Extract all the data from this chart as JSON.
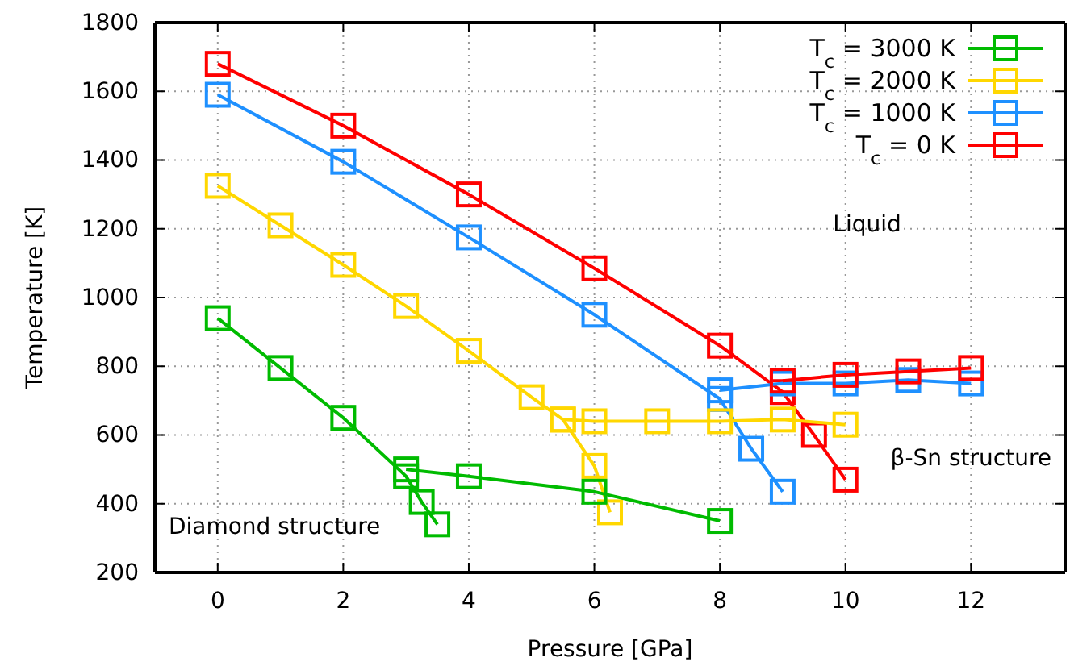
{
  "chart_data": {
    "type": "line",
    "xlabel": "Pressure [GPa]",
    "ylabel": "Temperature [K]",
    "xlim": [
      -1,
      13.5
    ],
    "xticks": [
      0,
      2,
      4,
      6,
      8,
      10,
      12
    ],
    "ylim": [
      200,
      1800
    ],
    "yticks": [
      200,
      400,
      600,
      800,
      1000,
      1200,
      1400,
      1600,
      1800
    ],
    "grid": true,
    "legend": "top right",
    "marker": "square",
    "line_style": "solid",
    "annotations": [
      "Liquid",
      "β-Sn structure",
      "Diamond structure"
    ],
    "series": [
      {
        "name": "T$_{c}$ = 3000 K",
        "color": "#00bb00",
        "x": [
          0,
          1,
          2,
          3,
          3.25,
          3.5
        ],
        "values": [
          940,
          795,
          650,
          480,
          405,
          340
        ]
      },
      {
        "name": "T$_{c}$ = 2000 K",
        "color": "#ffd700",
        "x": [
          0,
          1,
          2,
          3,
          4,
          5,
          5.5,
          6,
          6.25
        ],
        "values": [
          1325,
          1210,
          1095,
          975,
          845,
          710,
          645,
          510,
          375
        ]
      },
      {
        "name": "T$_{c}$ = 1000 K",
        "color": "#1e90ff",
        "x": [
          0,
          2,
          4,
          6,
          8,
          8.5,
          9
        ],
        "values": [
          1590,
          1395,
          1175,
          950,
          705,
          560,
          435
        ]
      },
      {
        "name": "T$_{c}$ = 0 K",
        "color": "#ff0000",
        "x": [
          0,
          2,
          4,
          6,
          8,
          9,
          9.5,
          10
        ],
        "values": [
          1680,
          1500,
          1300,
          1085,
          860,
          725,
          600,
          470
        ]
      },
      {
        "color": "#00bb00",
        "x": [
          3,
          4,
          6,
          8
        ],
        "values": [
          500,
          480,
          435,
          350
        ]
      },
      {
        "color": "#ffd700",
        "x": [
          5.5,
          6,
          7,
          8,
          9,
          10
        ],
        "values": [
          645,
          640,
          640,
          640,
          645,
          630
        ]
      },
      {
        "color": "#1e90ff",
        "x": [
          8,
          9,
          10,
          11,
          12
        ],
        "values": [
          730,
          750,
          750,
          760,
          750
        ]
      },
      {
        "color": "#ff0000",
        "x": [
          9,
          10,
          11,
          12
        ],
        "values": [
          758,
          775,
          785,
          795
        ]
      }
    ]
  }
}
